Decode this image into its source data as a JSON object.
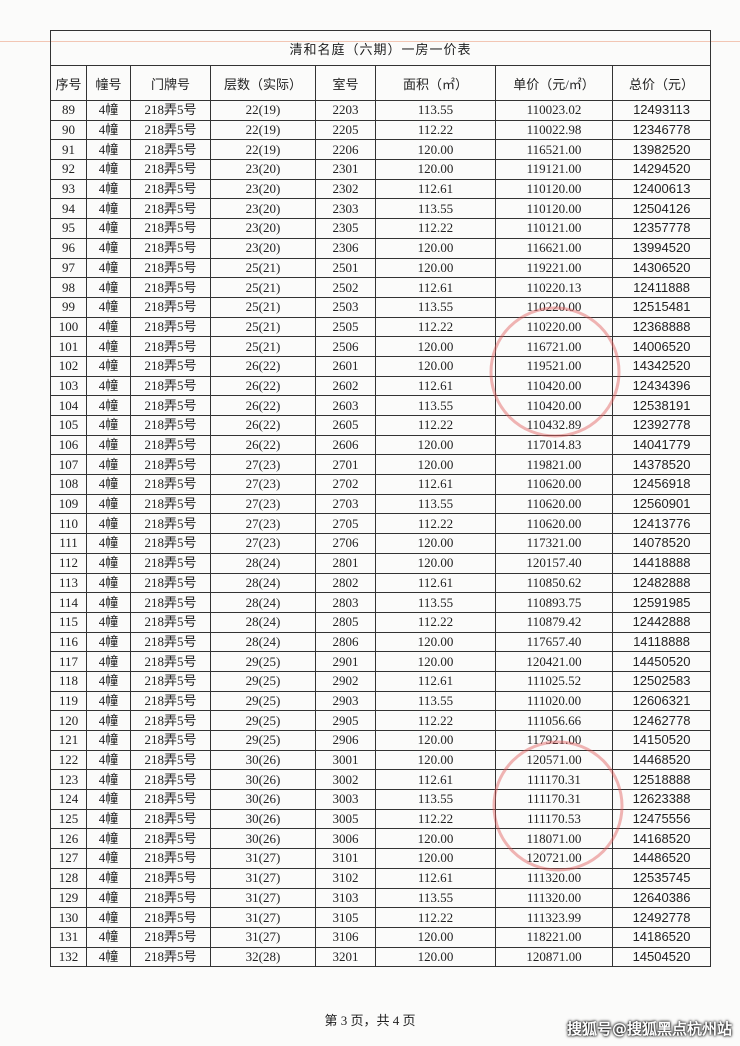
{
  "title": "清和名庭（六期）一房一价表",
  "table": {
    "header": [
      "序号",
      "幢号",
      "门牌号",
      "层数（实际）",
      "室号",
      "面积（㎡）",
      "单价（元/㎡）",
      "总价（元）"
    ],
    "rows": [
      [
        "89",
        "4幢",
        "218弄5号",
        "22(19)",
        "2203",
        "113.55",
        "110023.02",
        "12493113"
      ],
      [
        "90",
        "4幢",
        "218弄5号",
        "22(19)",
        "2205",
        "112.22",
        "110022.98",
        "12346778"
      ],
      [
        "91",
        "4幢",
        "218弄5号",
        "22(19)",
        "2206",
        "120.00",
        "116521.00",
        "13982520"
      ],
      [
        "92",
        "4幢",
        "218弄5号",
        "23(20)",
        "2301",
        "120.00",
        "119121.00",
        "14294520"
      ],
      [
        "93",
        "4幢",
        "218弄5号",
        "23(20)",
        "2302",
        "112.61",
        "110120.00",
        "12400613"
      ],
      [
        "94",
        "4幢",
        "218弄5号",
        "23(20)",
        "2303",
        "113.55",
        "110120.00",
        "12504126"
      ],
      [
        "95",
        "4幢",
        "218弄5号",
        "23(20)",
        "2305",
        "112.22",
        "110121.00",
        "12357778"
      ],
      [
        "96",
        "4幢",
        "218弄5号",
        "23(20)",
        "2306",
        "120.00",
        "116621.00",
        "13994520"
      ],
      [
        "97",
        "4幢",
        "218弄5号",
        "25(21)",
        "2501",
        "120.00",
        "119221.00",
        "14306520"
      ],
      [
        "98",
        "4幢",
        "218弄5号",
        "25(21)",
        "2502",
        "112.61",
        "110220.13",
        "12411888"
      ],
      [
        "99",
        "4幢",
        "218弄5号",
        "25(21)",
        "2503",
        "113.55",
        "110220.00",
        "12515481"
      ],
      [
        "100",
        "4幢",
        "218弄5号",
        "25(21)",
        "2505",
        "112.22",
        "110220.00",
        "12368888"
      ],
      [
        "101",
        "4幢",
        "218弄5号",
        "25(21)",
        "2506",
        "120.00",
        "116721.00",
        "14006520"
      ],
      [
        "102",
        "4幢",
        "218弄5号",
        "26(22)",
        "2601",
        "120.00",
        "119521.00",
        "14342520"
      ],
      [
        "103",
        "4幢",
        "218弄5号",
        "26(22)",
        "2602",
        "112.61",
        "110420.00",
        "12434396"
      ],
      [
        "104",
        "4幢",
        "218弄5号",
        "26(22)",
        "2603",
        "113.55",
        "110420.00",
        "12538191"
      ],
      [
        "105",
        "4幢",
        "218弄5号",
        "26(22)",
        "2605",
        "112.22",
        "110432.89",
        "12392778"
      ],
      [
        "106",
        "4幢",
        "218弄5号",
        "26(22)",
        "2606",
        "120.00",
        "117014.83",
        "14041779"
      ],
      [
        "107",
        "4幢",
        "218弄5号",
        "27(23)",
        "2701",
        "120.00",
        "119821.00",
        "14378520"
      ],
      [
        "108",
        "4幢",
        "218弄5号",
        "27(23)",
        "2702",
        "112.61",
        "110620.00",
        "12456918"
      ],
      [
        "109",
        "4幢",
        "218弄5号",
        "27(23)",
        "2703",
        "113.55",
        "110620.00",
        "12560901"
      ],
      [
        "110",
        "4幢",
        "218弄5号",
        "27(23)",
        "2705",
        "112.22",
        "110620.00",
        "12413776"
      ],
      [
        "111",
        "4幢",
        "218弄5号",
        "27(23)",
        "2706",
        "120.00",
        "117321.00",
        "14078520"
      ],
      [
        "112",
        "4幢",
        "218弄5号",
        "28(24)",
        "2801",
        "120.00",
        "120157.40",
        "14418888"
      ],
      [
        "113",
        "4幢",
        "218弄5号",
        "28(24)",
        "2802",
        "112.61",
        "110850.62",
        "12482888"
      ],
      [
        "114",
        "4幢",
        "218弄5号",
        "28(24)",
        "2803",
        "113.55",
        "110893.75",
        "12591985"
      ],
      [
        "115",
        "4幢",
        "218弄5号",
        "28(24)",
        "2805",
        "112.22",
        "110879.42",
        "12442888"
      ],
      [
        "116",
        "4幢",
        "218弄5号",
        "28(24)",
        "2806",
        "120.00",
        "117657.40",
        "14118888"
      ],
      [
        "117",
        "4幢",
        "218弄5号",
        "29(25)",
        "2901",
        "120.00",
        "120421.00",
        "14450520"
      ],
      [
        "118",
        "4幢",
        "218弄5号",
        "29(25)",
        "2902",
        "112.61",
        "111025.52",
        "12502583"
      ],
      [
        "119",
        "4幢",
        "218弄5号",
        "29(25)",
        "2903",
        "113.55",
        "111020.00",
        "12606321"
      ],
      [
        "120",
        "4幢",
        "218弄5号",
        "29(25)",
        "2905",
        "112.22",
        "111056.66",
        "12462778"
      ],
      [
        "121",
        "4幢",
        "218弄5号",
        "29(25)",
        "2906",
        "120.00",
        "117921.00",
        "14150520"
      ],
      [
        "122",
        "4幢",
        "218弄5号",
        "30(26)",
        "3001",
        "120.00",
        "120571.00",
        "14468520"
      ],
      [
        "123",
        "4幢",
        "218弄5号",
        "30(26)",
        "3002",
        "112.61",
        "111170.31",
        "12518888"
      ],
      [
        "124",
        "4幢",
        "218弄5号",
        "30(26)",
        "3003",
        "113.55",
        "111170.31",
        "12623388"
      ],
      [
        "125",
        "4幢",
        "218弄5号",
        "30(26)",
        "3005",
        "112.22",
        "111170.53",
        "12475556"
      ],
      [
        "126",
        "4幢",
        "218弄5号",
        "30(26)",
        "3006",
        "120.00",
        "118071.00",
        "14168520"
      ],
      [
        "127",
        "4幢",
        "218弄5号",
        "31(27)",
        "3101",
        "120.00",
        "120721.00",
        "14486520"
      ],
      [
        "128",
        "4幢",
        "218弄5号",
        "31(27)",
        "3102",
        "112.61",
        "111320.00",
        "12535745"
      ],
      [
        "129",
        "4幢",
        "218弄5号",
        "31(27)",
        "3103",
        "113.55",
        "111320.00",
        "12640386"
      ],
      [
        "130",
        "4幢",
        "218弄5号",
        "31(27)",
        "3105",
        "112.22",
        "111323.99",
        "12492778"
      ],
      [
        "131",
        "4幢",
        "218弄5号",
        "31(27)",
        "3106",
        "120.00",
        "118221.00",
        "14186520"
      ],
      [
        "132",
        "4幢",
        "218弄5号",
        "32(28)",
        "3201",
        "120.00",
        "120871.00",
        "14504520"
      ]
    ]
  },
  "footer": "第 3 页，共 4 页",
  "watermark": "搜狐号@搜狐黑点杭州站"
}
